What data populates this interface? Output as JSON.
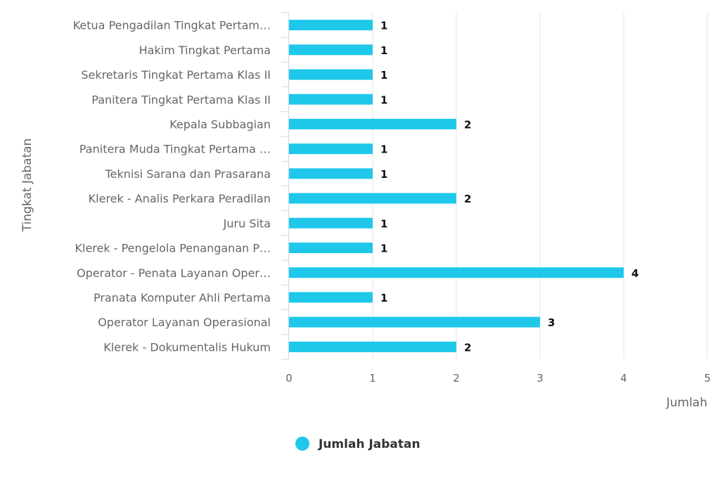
{
  "chart_data": {
    "type": "bar",
    "orientation": "horizontal",
    "categories": [
      "Ketua Pengadilan Tingkat Pertam…",
      "Hakim Tingkat Pertama",
      "Sekretaris Tingkat Pertama Klas II",
      "Panitera Tingkat Pertama Klas II",
      "Kepala Subbagian",
      "Panitera Muda Tingkat Pertama …",
      "Teknisi Sarana dan Prasarana",
      "Klerek - Analis Perkara Peradilan",
      "Juru Sita",
      "Klerek - Pengelola Penanganan P…",
      "Operator - Penata Layanan Oper…",
      "Pranata Komputer Ahli Pertama",
      "Operator Layanan Operasional",
      "Klerek - Dokumentalis Hukum"
    ],
    "series": [
      {
        "name": "Jumlah Jabatan",
        "values": [
          1,
          1,
          1,
          1,
          2,
          1,
          1,
          2,
          1,
          1,
          4,
          1,
          3,
          2
        ],
        "color": "#1fc8ea"
      }
    ],
    "xlabel": "Jumlah",
    "ylabel": "Tingkat Jabatan",
    "xlim": [
      0,
      5
    ],
    "xticks": [
      "0",
      "1",
      "2",
      "3",
      "4",
      "5"
    ],
    "grid": true,
    "data_labels": true,
    "legend_position": "bottom-center"
  }
}
